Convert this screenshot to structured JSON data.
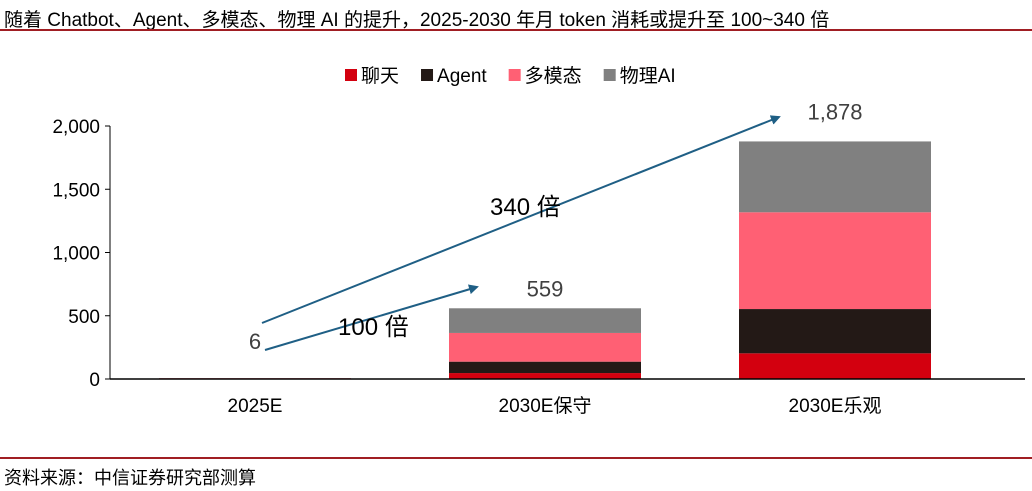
{
  "title": "随着 Chatbot、Agent、多模态、物理 AI 的提升，2025-2030 年月 token 消耗或提升至 100~340 倍",
  "source": "资料来源：中信证券研究部测算",
  "chart_data": {
    "type": "bar",
    "stacked": true,
    "categories": [
      "2025E",
      "2030E保守",
      "2030E乐观"
    ],
    "series": [
      {
        "name": "聊天",
        "color": "#d3000f",
        "values": [
          4,
          47,
          203
        ]
      },
      {
        "name": "Agent",
        "color": "#231916",
        "values": [
          1,
          90,
          350
        ]
      },
      {
        "name": "多模态",
        "color": "#ff6074",
        "values": [
          1,
          227,
          765
        ]
      },
      {
        "name": "物理AI",
        "color": "#808080",
        "values": [
          0,
          195,
          560
        ]
      }
    ],
    "totals": [
      6,
      559,
      1878
    ],
    "total_labels": [
      "6",
      "559",
      "1,878"
    ],
    "ylim": [
      0,
      2000
    ],
    "yticks": [
      0,
      500,
      1000,
      1500,
      2000
    ],
    "ytick_labels": [
      "0",
      "500",
      "1,000",
      "1,500",
      "2,000"
    ],
    "grid": false,
    "legend_placement": "top",
    "annotations": [
      {
        "text": "100 倍",
        "from": "2025E",
        "to": "2030E保守",
        "arrow_color": "#1f5f85"
      },
      {
        "text": "340 倍",
        "from": "2025E",
        "to": "2030E乐观",
        "arrow_color": "#1f5f85"
      }
    ]
  }
}
